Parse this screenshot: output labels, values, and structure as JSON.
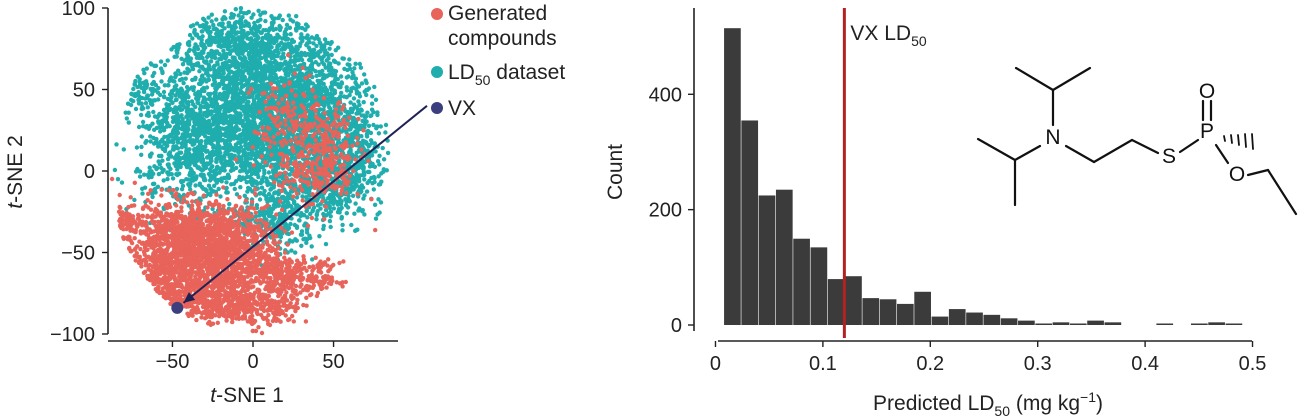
{
  "chart_data": [
    {
      "type": "scatter",
      "xlabel": "t-SNE 1",
      "xlabel_prefix": "t",
      "xlabel_suffix": "-SNE 1",
      "ylabel": "t-SNE 2",
      "ylabel_prefix": "t",
      "ylabel_suffix": "-SNE 2",
      "xlim": [
        -90,
        90
      ],
      "ylim": [
        -100,
        100
      ],
      "xticks": [
        -50,
        0,
        50
      ],
      "xtick_labels": [
        "−50",
        "0",
        "50"
      ],
      "yticks": [
        100,
        50,
        0,
        -50,
        -100
      ],
      "ytick_labels": [
        "100",
        "50",
        "0",
        "−50",
        "−100"
      ],
      "grid": false,
      "legend_position": "top-right",
      "colors": {
        "generated": "#e8635a",
        "dataset": "#1fadad",
        "vx": "#3b3f7e",
        "arrow": "#1f2255"
      },
      "series": [
        {
          "name": "Generated compounds",
          "legend_line1": "Generated",
          "legend_line2": "compounds",
          "color": "#e8635a",
          "clusters": [
            {
              "cx": -45,
              "cy": -40,
              "sx": 18,
              "sy": 11,
              "n": 900
            },
            {
              "cx": -14,
              "cy": -52,
              "sx": 16,
              "sy": 14,
              "n": 900
            },
            {
              "cx": -55,
              "cy": -68,
              "sx": 12,
              "sy": 10,
              "n": 400
            },
            {
              "cx": -22,
              "cy": -80,
              "sx": 13,
              "sy": 7,
              "n": 400
            },
            {
              "cx": 12,
              "cy": -84,
              "sx": 9,
              "sy": 6,
              "n": 160
            },
            {
              "cx": 18,
              "cy": -64,
              "sx": 10,
              "sy": 6,
              "n": 200
            },
            {
              "cx": 42,
              "cy": -66,
              "sx": 6,
              "sy": 5,
              "n": 90
            },
            {
              "cx": -80,
              "cy": -30,
              "sx": 5,
              "sy": 5,
              "n": 60
            },
            {
              "cx": 40,
              "cy": 0,
              "sx": 14,
              "sy": 12,
              "n": 220
            },
            {
              "cx": 20,
              "cy": 30,
              "sx": 10,
              "sy": 15,
              "n": 140
            },
            {
              "cx": 48,
              "cy": 20,
              "sx": 8,
              "sy": 10,
              "n": 100
            }
          ]
        },
        {
          "name": "LD50 dataset",
          "legend_sub_base": "LD",
          "legend_sub": "50",
          "legend_suffix": " dataset",
          "color": "#1fadad",
          "clusters": [
            {
              "cx": 5,
              "cy": 35,
              "sx": 26,
              "sy": 28,
              "n": 2600
            },
            {
              "cx": -40,
              "cy": 20,
              "sx": 16,
              "sy": 22,
              "n": 700
            },
            {
              "cx": 40,
              "cy": 35,
              "sx": 18,
              "sy": 24,
              "n": 700
            },
            {
              "cx": 50,
              "cy": -5,
              "sx": 14,
              "sy": 12,
              "n": 400
            },
            {
              "cx": 15,
              "cy": -30,
              "sx": 12,
              "sy": 10,
              "n": 300
            },
            {
              "cx": -10,
              "cy": 80,
              "sx": 22,
              "sy": 10,
              "n": 400
            },
            {
              "cx": -70,
              "cy": 50,
              "sx": 6,
              "sy": 6,
              "n": 80
            },
            {
              "cx": 65,
              "cy": 15,
              "sx": 6,
              "sy": 14,
              "n": 120
            }
          ]
        },
        {
          "name": "VX",
          "color": "#3b3f7e",
          "points": [
            {
              "x": -47,
              "y": -84
            }
          ]
        }
      ],
      "annotation": {
        "type": "arrow",
        "from": [
          108,
          40
        ],
        "to": [
          -47,
          -84
        ]
      }
    },
    {
      "type": "bar",
      "subtype": "histogram",
      "xlabel": "Predicted LD50 (mg kg−1)",
      "xlabel_base": "Predicted LD",
      "xlabel_sub": "50",
      "xlabel_unit_pre": " (mg kg",
      "xlabel_sup": "−1",
      "xlabel_unit_post": ")",
      "ylabel": "Count",
      "xlim": [
        -0.02,
        0.52
      ],
      "ylim": [
        0,
        560
      ],
      "xticks": [
        0,
        0.1,
        0.2,
        0.3,
        0.4,
        0.5
      ],
      "xtick_labels": [
        "0",
        "0.1",
        "0.2",
        "0.3",
        "0.4",
        "0.5"
      ],
      "yticks": [
        0,
        200,
        400
      ],
      "ytick_labels": [
        "0",
        "200",
        "400"
      ],
      "grid": false,
      "bin_start": 0.008,
      "bin_width": 0.0161,
      "values": [
        525,
        365,
        235,
        245,
        160,
        145,
        90,
        95,
        57,
        55,
        47,
        68,
        25,
        38,
        32,
        28,
        22,
        18,
        13,
        15,
        13,
        18,
        15,
        9,
        10,
        13,
        10,
        13,
        15,
        13
      ],
      "bar_color": "#3b3b3b",
      "reference_line": {
        "x": 0.12,
        "label_base": "VX LD",
        "label_sub": "50",
        "color": "#b22222"
      },
      "inset": {
        "description": "VX molecular structure",
        "atoms": [
          "N",
          "S",
          "P",
          "O",
          "O"
        ]
      }
    }
  ]
}
